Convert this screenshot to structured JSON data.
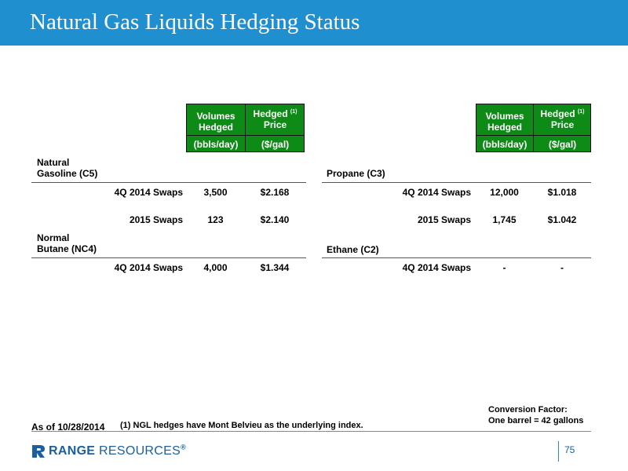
{
  "title": "Natural Gas Liquids Hedging Status",
  "header": {
    "volumes_label_1": "Volumes",
    "volumes_label_2": "Hedged",
    "price_label_1": "Hedged",
    "price_sup": "(1)",
    "price_label_2": "Price",
    "volumes_unit": "(bbls/day)",
    "price_unit": "($/gal)"
  },
  "left": {
    "natural_gasoline": {
      "line1": "Natural",
      "line2": "Gasoline (C5)",
      "rows": [
        {
          "label": "4Q 2014 Swaps",
          "volume": "3,500",
          "price": "$2.168"
        },
        {
          "label": "2015 Swaps",
          "volume": "123",
          "price": "$2.140"
        }
      ]
    },
    "normal_butane": {
      "line1": "Normal",
      "line2": "Butane (NC4)",
      "rows": [
        {
          "label": "4Q 2014 Swaps",
          "volume": "4,000",
          "price": "$1.344"
        }
      ]
    }
  },
  "right": {
    "propane": {
      "label": "Propane (C3)",
      "rows": [
        {
          "label": "4Q 2014 Swaps",
          "volume": "12,000",
          "price": "$1.018"
        },
        {
          "label": "2015 Swaps",
          "volume": "1,745",
          "price": "$1.042"
        }
      ]
    },
    "ethane": {
      "label": "Ethane (C2)",
      "rows": [
        {
          "label": "4Q 2014 Swaps",
          "volume": "-",
          "price": "-"
        }
      ]
    }
  },
  "footer": {
    "as_of": "As of 10/28/2014",
    "footnote": "(1) NGL hedges have Mont Belvieu as the underlying index.",
    "conversion_1": "Conversion Factor:",
    "conversion_2": "One barrel = 42 gallons",
    "logo_bold": "RANGE",
    "logo_thin": "RESOURCES",
    "logo_mark": "®",
    "page_number": "75"
  },
  "colors": {
    "title_bar": "#1f8fd0",
    "header_green": "#0e8a17",
    "brand_blue": "#1a5fa0"
  }
}
